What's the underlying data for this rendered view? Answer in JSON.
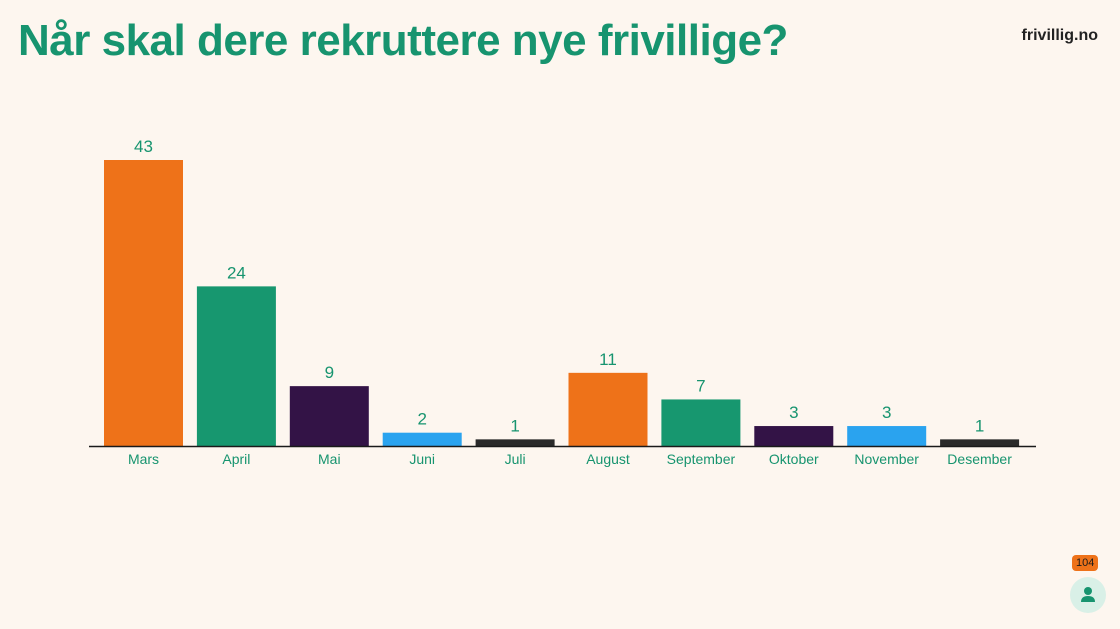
{
  "page": {
    "title": "Når skal dere rekruttere nye frivillige?",
    "logo": "frivillig.no"
  },
  "participants": {
    "count": "104",
    "icon": "person-icon"
  },
  "colors": {
    "orange": "#ee7219",
    "green": "#17976f",
    "purple": "#331346",
    "blue": "#2aa3ef",
    "dark": "#2a2a2a",
    "text": "#17946f"
  },
  "chart_data": {
    "type": "bar",
    "title": "",
    "xlabel": "",
    "ylabel": "",
    "categories": [
      "Mars",
      "April",
      "Mai",
      "Juni",
      "Juli",
      "August",
      "September",
      "Oktober",
      "November",
      "Desember"
    ],
    "values": [
      43,
      24,
      9,
      2,
      1,
      11,
      7,
      3,
      3,
      1
    ],
    "bar_colors": [
      "#ee7219",
      "#17976f",
      "#331346",
      "#2aa3ef",
      "#2a2a2a",
      "#ee7219",
      "#17976f",
      "#331346",
      "#2aa3ef",
      "#2a2a2a"
    ],
    "ylim": [
      0,
      43
    ],
    "grid": false,
    "legend": "none",
    "data_labels": true
  }
}
